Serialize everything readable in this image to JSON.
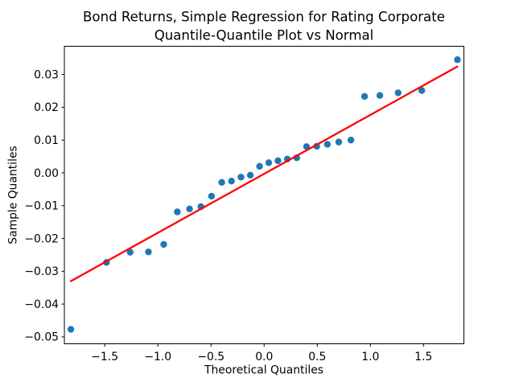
{
  "figure": {
    "background": "#ffffff"
  },
  "chart_data": {
    "type": "scatter",
    "title_line1": "Bond Returns, Simple Regression for Rating Corporate",
    "title_line2": "Quantile-Quantile Plot vs Normal",
    "xlabel": "Theoretical Quantiles",
    "ylabel": "Sample Quantiles",
    "xlim": [
      -1.88,
      1.88
    ],
    "ylim": [
      -0.0521,
      0.0386
    ],
    "xticks": [
      -1.5,
      -1.0,
      -0.5,
      0.0,
      0.5,
      1.0,
      1.5
    ],
    "yticks": [
      0.03,
      0.02,
      0.01,
      0.0,
      -0.01,
      -0.02,
      -0.03,
      -0.04,
      -0.05
    ],
    "grid": false,
    "legend": "none",
    "series": [
      {
        "name": "sample-quantiles",
        "type": "scatter",
        "x": [
          -1.819,
          -1.484,
          -1.261,
          -1.089,
          -0.945,
          -0.817,
          -0.702,
          -0.595,
          -0.495,
          -0.399,
          -0.307,
          -0.218,
          -0.13,
          -0.043,
          0.043,
          0.13,
          0.218,
          0.307,
          0.399,
          0.495,
          0.595,
          0.702,
          0.817,
          0.945,
          1.089,
          1.261,
          1.484,
          1.819
        ],
        "y": [
          -0.0477,
          -0.0273,
          -0.0242,
          -0.0241,
          -0.0218,
          -0.0119,
          -0.011,
          -0.0103,
          -0.0071,
          -0.0029,
          -0.0025,
          -0.0013,
          -0.0007,
          0.002,
          0.0031,
          0.0037,
          0.0042,
          0.0046,
          0.008,
          0.0081,
          0.0087,
          0.0094,
          0.01,
          0.0233,
          0.0236,
          0.0244,
          0.0251,
          0.0345
        ]
      },
      {
        "name": "regression-line",
        "type": "line",
        "x": [
          -1.819,
          1.819
        ],
        "y": [
          -0.033,
          0.0324
        ]
      }
    ],
    "colors": {
      "marker": "#1f77b4",
      "regression_line": "#ff0000",
      "axis": "#000000",
      "background": "#ffffff"
    }
  }
}
